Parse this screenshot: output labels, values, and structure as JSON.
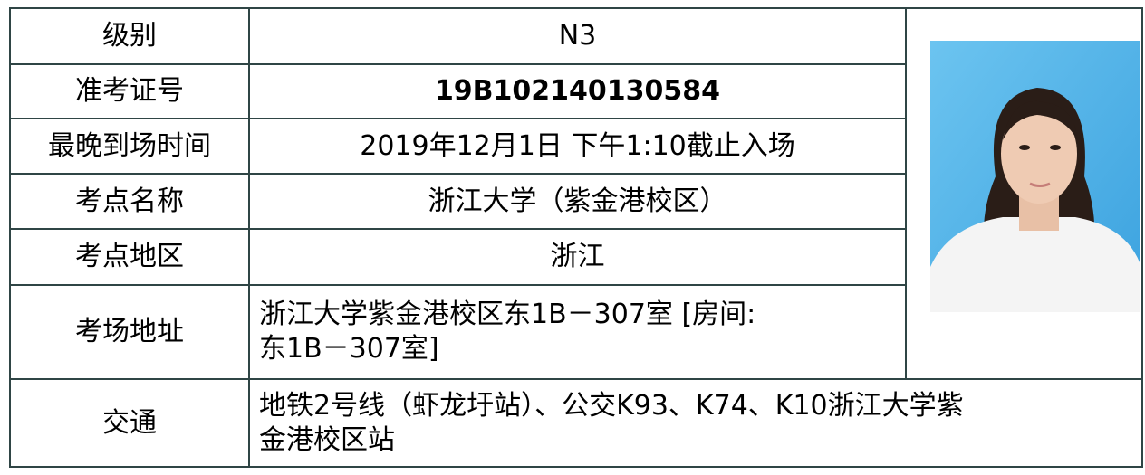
{
  "table": {
    "rows": [
      {
        "label": "级别",
        "value": [
          "N3"
        ]
      },
      {
        "label": "准考证号",
        "value": [
          "19B102140130584"
        ]
      },
      {
        "label": "最晚到场时间",
        "value": [
          "2019年12月1日 下午1:10截止入场"
        ]
      },
      {
        "label": "考点名称",
        "value": [
          "浙江大学（紫金港校区）"
        ]
      },
      {
        "label": "考点地区",
        "value": [
          "浙江"
        ]
      },
      {
        "label": "考场地址",
        "value": [
          "浙江大学紫金港校区东1B－307室 [房间:",
          "东1B－307室]"
        ]
      },
      {
        "label": "交通",
        "value": [
          "地铁2号线（虾龙圩站）、公交K93、K74、K10浙江大学紫",
          "金港校区站"
        ]
      }
    ]
  }
}
